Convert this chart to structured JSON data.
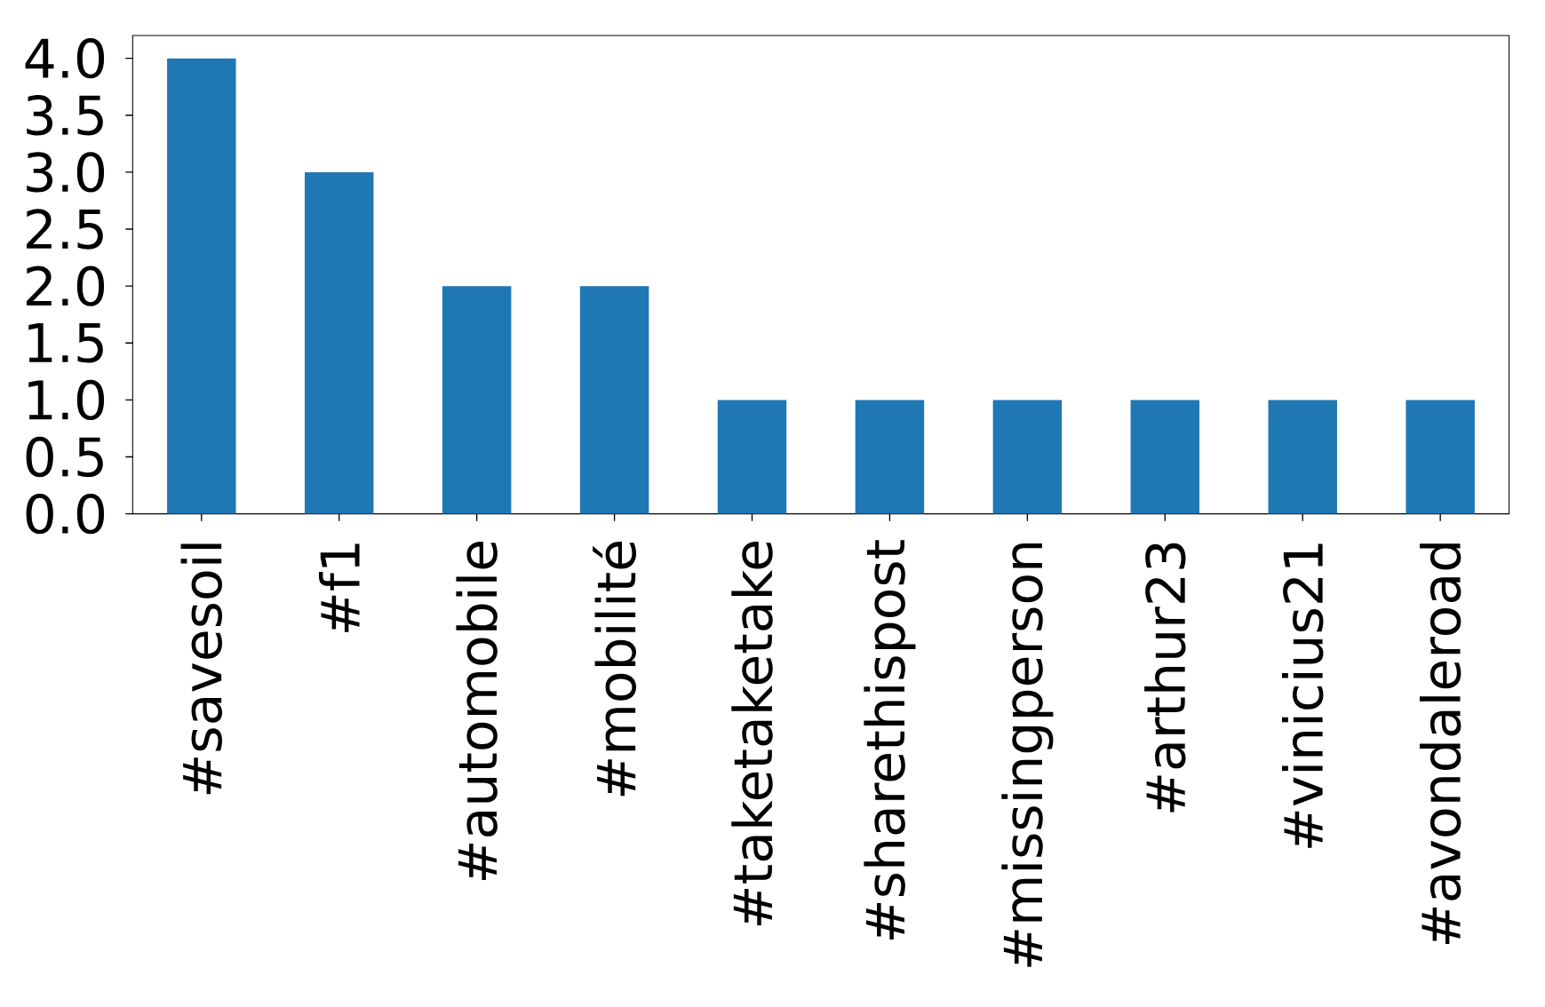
{
  "chart_data": {
    "type": "bar",
    "categories": [
      "#savesoil",
      "#f1",
      "#automobile",
      "#mobilité",
      "#taketaketake",
      "#sharethispost",
      "#missingperson",
      "#arthur23",
      "#vinicius21",
      "#avondaleroad"
    ],
    "values": [
      4,
      3,
      2,
      2,
      1,
      1,
      1,
      1,
      1,
      1
    ],
    "color": "#1f77b4",
    "ylim": [
      0,
      4.2
    ],
    "yticks": [
      {
        "value": 0,
        "label": "0.0"
      },
      {
        "value": 0.5,
        "label": "0.5"
      },
      {
        "value": 1,
        "label": "1.0"
      },
      {
        "value": 1.5,
        "label": "1.5"
      },
      {
        "value": 2,
        "label": "2.0"
      },
      {
        "value": 2.5,
        "label": "2.5"
      },
      {
        "value": 3,
        "label": "3.0"
      },
      {
        "value": 3.5,
        "label": "3.5"
      },
      {
        "value": 4,
        "label": "4.0"
      }
    ]
  }
}
